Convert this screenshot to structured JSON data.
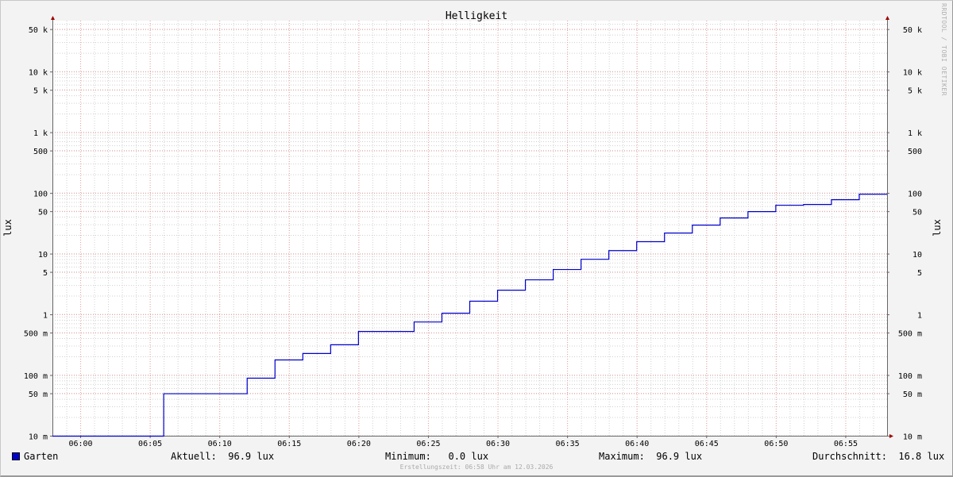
{
  "chart_data": {
    "type": "line",
    "step": true,
    "title": "Helligkeit",
    "ylabel": "lux",
    "yscale": "log",
    "ylim": [
      0.01,
      69000
    ],
    "xlim": [
      "05:58",
      "06:58"
    ],
    "grid": true,
    "y_ticks": [
      {
        "value": 0.01,
        "label": "10 m"
      },
      {
        "value": 0.05,
        "label": "50 m"
      },
      {
        "value": 0.1,
        "label": "100 m"
      },
      {
        "value": 0.5,
        "label": "500 m"
      },
      {
        "value": 1,
        "label": "1"
      },
      {
        "value": 5,
        "label": "5"
      },
      {
        "value": 10,
        "label": "10"
      },
      {
        "value": 50,
        "label": "50"
      },
      {
        "value": 100,
        "label": "100"
      },
      {
        "value": 500,
        "label": "500"
      },
      {
        "value": 1000,
        "label": "1 k"
      },
      {
        "value": 5000,
        "label": "5 k"
      },
      {
        "value": 10000,
        "label": "10 k"
      },
      {
        "value": 50000,
        "label": "50 k"
      }
    ],
    "x_ticks": [
      "06:00",
      "06:05",
      "06:10",
      "06:15",
      "06:20",
      "06:25",
      "06:30",
      "06:35",
      "06:40",
      "06:45",
      "06:50",
      "06:55"
    ],
    "series": [
      {
        "name": "Garten",
        "color": "#0000cc",
        "x": [
          "05:58",
          "06:06",
          "06:12",
          "06:14",
          "06:16",
          "06:18",
          "06:20",
          "06:24",
          "06:26",
          "06:28",
          "06:30",
          "06:32",
          "06:34",
          "06:36",
          "06:38",
          "06:40",
          "06:42",
          "06:44",
          "06:46",
          "06:48",
          "06:50",
          "06:52",
          "06:54",
          "06:56"
        ],
        "values": [
          0,
          0.05,
          0.09,
          0.18,
          0.23,
          0.32,
          0.53,
          0.76,
          1.06,
          1.67,
          2.54,
          3.76,
          5.56,
          8.2,
          11.4,
          16,
          22.2,
          30,
          39.3,
          50,
          63.7,
          65.6,
          78.5,
          96.9
        ]
      }
    ]
  },
  "legend": {
    "series_name": "Garten",
    "current": "Aktuell:  96.9 lux",
    "minimum": "Minimum:   0.0 lux",
    "maximum": "Maximum:  96.9 lux",
    "average": "Durchschnitt:  16.8 lux"
  },
  "footer": "Erstellungszeit: 06:58 Uhr am 12.03.2026",
  "watermark": "RRDTOOL / TOBI OETIKER"
}
